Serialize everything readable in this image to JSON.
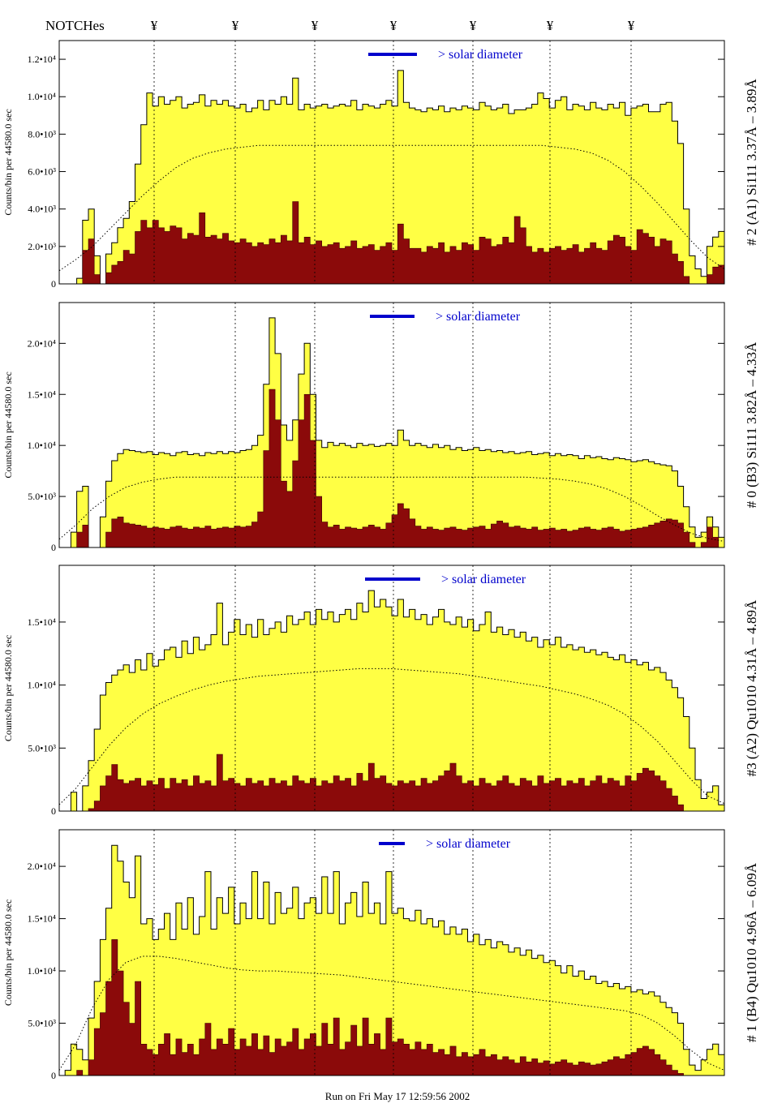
{
  "header": {
    "notches_label": "NOTCHes",
    "notch_symbol": "¥"
  },
  "footer": {
    "run_text": "Run on Fri May 17 12:59:56 2002"
  },
  "colors": {
    "fill": "#ffff44",
    "inner": "#8b0a0a",
    "line": "#000000",
    "accent": "#0000cc"
  },
  "chart_data": [
    {
      "type": "area",
      "ylabel": "Counts/bin per  44580.0 sec",
      "right_label": "# 2 (A1) Si111  3.37Å – 3.89Å",
      "solar_label": "> solar diameter",
      "ylim": [
        0,
        13000
      ],
      "ticks": [
        {
          "v": 0,
          "t": "0"
        },
        {
          "v": 2000,
          "t": "2.0•10³"
        },
        {
          "v": 4000,
          "t": "4.0•10³"
        },
        {
          "v": 6000,
          "t": "6.0•10³"
        },
        {
          "v": 8000,
          "t": "8.0•10³"
        },
        {
          "v": 10000,
          "t": "1.0•10⁴"
        },
        {
          "v": 12000,
          "t": "1.2•10⁴"
        }
      ],
      "total": [
        0,
        0,
        0,
        300,
        3400,
        4000,
        1500,
        0,
        1600,
        2200,
        3000,
        3500,
        4400,
        6400,
        8500,
        10200,
        9500,
        10000,
        9600,
        9800,
        10000,
        9400,
        9600,
        9700,
        10100,
        9500,
        9800,
        9600,
        9800,
        9500,
        9400,
        9600,
        9200,
        9400,
        9800,
        9300,
        9800,
        9600,
        10000,
        9600,
        11000,
        9300,
        9600,
        9400,
        9500,
        9600,
        9400,
        9500,
        9600,
        9500,
        9800,
        9300,
        9600,
        9500,
        9400,
        9600,
        9800,
        9500,
        11400,
        9700,
        9400,
        9300,
        9200,
        9400,
        9300,
        9500,
        9200,
        9400,
        9300,
        9500,
        9400,
        9300,
        9700,
        9500,
        9300,
        9400,
        9600,
        9100,
        9300,
        9300,
        9400,
        9600,
        10200,
        9900,
        9400,
        9800,
        10000,
        9300,
        9600,
        9500,
        9300,
        9700,
        9400,
        9300,
        9600,
        9400,
        9700,
        9000,
        9400,
        9500,
        9600,
        9200,
        9200,
        9600,
        9700,
        8700,
        7500,
        4000,
        1500,
        800,
        400,
        2000,
        2500,
        2800
      ],
      "inner": [
        0,
        0,
        0,
        0,
        1800,
        2400,
        500,
        0,
        600,
        1000,
        1200,
        1800,
        1600,
        2800,
        3400,
        3000,
        3400,
        3000,
        2800,
        3100,
        3000,
        2400,
        2700,
        2600,
        3800,
        2500,
        2600,
        2400,
        2700,
        2300,
        2200,
        2400,
        2200,
        2000,
        2200,
        2100,
        2400,
        2200,
        2600,
        2300,
        4400,
        2200,
        2500,
        2100,
        2300,
        2000,
        2100,
        2200,
        1900,
        2000,
        2300,
        1900,
        2000,
        2100,
        1800,
        2000,
        2200,
        1800,
        3200,
        2400,
        1900,
        1900,
        1700,
        2000,
        1900,
        2200,
        1700,
        2000,
        1800,
        2200,
        2100,
        1800,
        2500,
        2400,
        2000,
        2100,
        2500,
        2200,
        3600,
        3000,
        2000,
        1700,
        1900,
        1700,
        1900,
        2000,
        1800,
        1900,
        2100,
        1700,
        1900,
        2200,
        1900,
        1800,
        2300,
        2600,
        2500,
        2000,
        1800,
        2900,
        2700,
        2500,
        2000,
        2400,
        2300,
        1600,
        1200,
        400,
        0,
        0,
        0,
        500,
        900,
        1000
      ],
      "dotted": [
        700,
        1300,
        2000,
        2900,
        3800,
        4700,
        5500,
        6200,
        6700,
        7000,
        7200,
        7300,
        7400,
        7400,
        7400,
        7400,
        7400,
        7400,
        7400,
        7400,
        7400,
        7400,
        7400,
        7400,
        7400,
        7400,
        7400,
        7400,
        7400,
        7400,
        7300,
        7200,
        7000,
        6600,
        6000,
        5200,
        4300,
        3300,
        2300,
        1400,
        800
      ]
    },
    {
      "type": "area",
      "ylabel": "Counts/bin per  44580.0 sec",
      "right_label": "# 0 (B3) Si111  3.82Å – 4.33Å",
      "solar_label": "> solar diameter",
      "ylim": [
        0,
        24000
      ],
      "ticks": [
        {
          "v": 0,
          "t": "0"
        },
        {
          "v": 5000,
          "t": "5.0•10³"
        },
        {
          "v": 10000,
          "t": "1.0•10⁴"
        },
        {
          "v": 15000,
          "t": "1.5•10⁴"
        },
        {
          "v": 20000,
          "t": "2.0•10⁴"
        }
      ],
      "total": [
        0,
        0,
        1500,
        5500,
        6000,
        0,
        0,
        3000,
        6500,
        8500,
        9200,
        9600,
        9500,
        9400,
        9300,
        9400,
        9100,
        9300,
        9200,
        9000,
        9300,
        9400,
        9100,
        9200,
        9000,
        9300,
        9200,
        9400,
        9200,
        9400,
        9300,
        9500,
        9600,
        10000,
        11000,
        16000,
        22500,
        19000,
        12000,
        10500,
        12500,
        17000,
        20000,
        15000,
        10500,
        9800,
        10300,
        10000,
        10200,
        10000,
        9800,
        10200,
        10000,
        10100,
        9900,
        10000,
        10200,
        10000,
        11500,
        10500,
        10000,
        10200,
        10000,
        9800,
        10100,
        9800,
        10000,
        9600,
        9800,
        9500,
        9600,
        9800,
        9500,
        9600,
        9400,
        9500,
        9300,
        9400,
        9200,
        9300,
        9400,
        9100,
        9200,
        9300,
        9000,
        9200,
        9000,
        9100,
        9000,
        8700,
        9000,
        8800,
        8900,
        8700,
        8600,
        8800,
        8700,
        8600,
        8400,
        8500,
        8600,
        8400,
        8200,
        8100,
        8000,
        7500,
        6000,
        4000,
        2000,
        1000,
        1500,
        3000,
        2000,
        1000
      ],
      "inner": [
        0,
        0,
        0,
        1500,
        2200,
        0,
        0,
        0,
        1500,
        2800,
        3000,
        2400,
        2300,
        2200,
        2100,
        1900,
        2000,
        1900,
        1800,
        2000,
        2100,
        1900,
        1800,
        2000,
        1900,
        2100,
        1800,
        1900,
        2000,
        1900,
        2100,
        2000,
        2100,
        2500,
        3500,
        9500,
        15500,
        12500,
        6500,
        5500,
        8500,
        12500,
        15000,
        10500,
        5000,
        2500,
        2000,
        2200,
        1800,
        2000,
        1900,
        1800,
        2000,
        2200,
        2000,
        1800,
        2400,
        3200,
        4300,
        3800,
        2800,
        2100,
        1800,
        2000,
        1800,
        1700,
        1900,
        2000,
        1800,
        1700,
        1900,
        2000,
        2100,
        1800,
        2300,
        2600,
        2400,
        2000,
        2100,
        1900,
        1800,
        2000,
        1700,
        1800,
        1900,
        1700,
        1800,
        1600,
        1700,
        1900,
        2000,
        1800,
        1700,
        1900,
        2000,
        1800,
        1600,
        1700,
        1800,
        1900,
        2000,
        2200,
        2400,
        2600,
        2800,
        2700,
        2400,
        1500,
        500,
        0,
        500,
        2000,
        1000,
        0
      ],
      "dotted": [
        800,
        2200,
        3800,
        5000,
        5900,
        6400,
        6700,
        6900,
        6900,
        6900,
        6900,
        6900,
        6900,
        6900,
        6900,
        6900,
        6900,
        6900,
        6900,
        6900,
        6900,
        6900,
        6900,
        6900,
        6900,
        6900,
        6900,
        6900,
        6900,
        6800,
        6700,
        6500,
        6200,
        5700,
        5000,
        4100,
        3100,
        2200,
        1400,
        900,
        600
      ]
    },
    {
      "type": "area",
      "ylabel": "Counts/bin per  44580.0 sec",
      "right_label": "#3 (A2) Qu1010  4.31Å – 4.89Å",
      "solar_label": "> solar diameter",
      "ylim": [
        0,
        19500
      ],
      "ticks": [
        {
          "v": 0,
          "t": "0"
        },
        {
          "v": 5000,
          "t": "5.0•10³"
        },
        {
          "v": 10000,
          "t": "1.0•10⁴"
        },
        {
          "v": 15000,
          "t": "1.5•10⁴"
        }
      ],
      "total": [
        0,
        0,
        1500,
        0,
        2000,
        4000,
        6500,
        9200,
        10200,
        10800,
        11200,
        11600,
        11000,
        12000,
        11200,
        12500,
        11500,
        12000,
        12800,
        13000,
        12200,
        13500,
        12500,
        13800,
        12800,
        13200,
        14000,
        16500,
        13200,
        14200,
        15200,
        14000,
        14800,
        13800,
        15200,
        14000,
        14500,
        15000,
        14200,
        15500,
        14800,
        15200,
        15800,
        14800,
        16000,
        15200,
        15800,
        15000,
        15600,
        16000,
        15200,
        16500,
        15800,
        17500,
        16200,
        16800,
        16200,
        15500,
        16800,
        15400,
        16000,
        15200,
        15600,
        14800,
        15400,
        16000,
        15000,
        14800,
        15400,
        14600,
        15200,
        14300,
        14800,
        15800,
        14200,
        14600,
        14000,
        14400,
        13800,
        14200,
        13500,
        13800,
        13000,
        13600,
        13200,
        13800,
        13000,
        13200,
        12800,
        13000,
        12600,
        12800,
        12400,
        12600,
        12200,
        12000,
        12400,
        11800,
        12000,
        11600,
        11800,
        11200,
        11400,
        11000,
        10400,
        9800,
        9000,
        7500,
        5000,
        2500,
        1000,
        1500,
        2000,
        500
      ],
      "inner": [
        0,
        0,
        0,
        0,
        0,
        200,
        800,
        2000,
        2800,
        3700,
        2500,
        2200,
        2400,
        2600,
        2000,
        2400,
        2100,
        2600,
        1800,
        2600,
        2200,
        2500,
        2000,
        2800,
        2200,
        2400,
        2000,
        4500,
        2400,
        2600,
        2200,
        2000,
        2600,
        2200,
        2400,
        2000,
        2600,
        2200,
        2400,
        2000,
        2800,
        2400,
        2200,
        2600,
        2000,
        2400,
        2200,
        2800,
        2400,
        2600,
        2000,
        3000,
        2400,
        3800,
        2600,
        2800,
        2200,
        2000,
        2400,
        2200,
        2400,
        2000,
        2600,
        2200,
        2400,
        2800,
        3200,
        3800,
        2800,
        2200,
        2400,
        2000,
        2600,
        2200,
        2000,
        2400,
        2800,
        2200,
        2000,
        2600,
        2400,
        2000,
        2800,
        2200,
        2400,
        2600,
        2000,
        2400,
        2200,
        2600,
        2000,
        2400,
        2800,
        2200,
        2600,
        2400,
        2000,
        2800,
        2400,
        3000,
        3400,
        3200,
        2800,
        2400,
        1800,
        1200,
        500,
        0,
        0,
        0,
        0,
        0,
        0,
        0
      ],
      "dotted": [
        500,
        1800,
        3500,
        5200,
        6600,
        7700,
        8500,
        9100,
        9600,
        10000,
        10300,
        10500,
        10700,
        10800,
        10900,
        11000,
        11100,
        11200,
        11300,
        11300,
        11300,
        11200,
        11100,
        11000,
        10900,
        10700,
        10500,
        10300,
        10100,
        9900,
        9600,
        9300,
        8900,
        8400,
        7700,
        6700,
        5500,
        4000,
        2500,
        1200,
        600
      ]
    },
    {
      "type": "area",
      "ylabel": "Counts/bin per  44580.0 sec",
      "right_label": "# 1 (B4) Qu1010 4.96Å – 6.09Å",
      "solar_label": "> solar diameter",
      "ylim": [
        0,
        23500
      ],
      "ticks": [
        {
          "v": 0,
          "t": "0"
        },
        {
          "v": 5000,
          "t": "5.0•10³"
        },
        {
          "v": 10000,
          "t": "1.0•10⁴"
        },
        {
          "v": 15000,
          "t": "1.5•10⁴"
        },
        {
          "v": 20000,
          "t": "2.0•10⁴"
        }
      ],
      "total": [
        0,
        500,
        3000,
        2500,
        1500,
        5500,
        9000,
        13000,
        16000,
        22000,
        20500,
        18500,
        17000,
        21000,
        14500,
        15000,
        13000,
        14000,
        15500,
        13000,
        16500,
        14000,
        17000,
        13500,
        15200,
        19500,
        14000,
        17000,
        15500,
        18000,
        14500,
        16500,
        15000,
        19500,
        15000,
        18500,
        14500,
        17500,
        15500,
        16000,
        18000,
        15000,
        16500,
        17000,
        15500,
        19000,
        15500,
        19500,
        14500,
        16500,
        17500,
        15200,
        18500,
        15500,
        16500,
        14500,
        19500,
        15500,
        16000,
        15000,
        14800,
        15800,
        14500,
        15000,
        14200,
        14800,
        13500,
        14200,
        13500,
        14000,
        12800,
        13500,
        12500,
        13000,
        12200,
        12800,
        12500,
        11800,
        12200,
        11500,
        12000,
        11200,
        11500,
        10800,
        11000,
        10500,
        9800,
        10500,
        9500,
        10000,
        9200,
        9500,
        8800,
        9000,
        8500,
        8800,
        8300,
        8500,
        8000,
        8200,
        7800,
        8000,
        7600,
        7000,
        6500,
        6000,
        5000,
        2500,
        1000,
        500,
        1500,
        2500,
        3000,
        2000
      ],
      "inner": [
        0,
        0,
        0,
        500,
        0,
        1500,
        4500,
        6000,
        9000,
        13000,
        10000,
        7000,
        5000,
        9000,
        3000,
        2500,
        2000,
        3000,
        4000,
        2000,
        3500,
        2200,
        3000,
        2000,
        3500,
        5000,
        2500,
        3500,
        3000,
        4500,
        2500,
        3500,
        2800,
        4000,
        2500,
        3800,
        2200,
        3500,
        2800,
        3200,
        4500,
        2500,
        3500,
        4000,
        2800,
        5000,
        3000,
        5500,
        2500,
        3200,
        4800,
        2800,
        5500,
        3000,
        4000,
        2500,
        5500,
        3200,
        3500,
        3000,
        2500,
        3200,
        2500,
        3000,
        2200,
        2500,
        2000,
        2800,
        1800,
        2200,
        1800,
        2000,
        2500,
        1800,
        2000,
        1500,
        1800,
        1500,
        1200,
        1800,
        1300,
        1600,
        1200,
        1400,
        1100,
        1300,
        1500,
        1200,
        1000,
        1300,
        1200,
        1000,
        1100,
        1300,
        1500,
        1800,
        1600,
        2000,
        2200,
        2600,
        2800,
        2500,
        2000,
        1500,
        1000,
        500,
        200,
        0,
        0,
        0,
        0,
        0,
        0,
        0
      ],
      "dotted": [
        500,
        3000,
        6500,
        9200,
        10800,
        11400,
        11400,
        11200,
        10900,
        10600,
        10300,
        10100,
        10000,
        10000,
        9900,
        9800,
        9700,
        9600,
        9400,
        9200,
        9000,
        8800,
        8600,
        8400,
        8200,
        8000,
        7800,
        7600,
        7400,
        7200,
        7000,
        6800,
        6600,
        6400,
        6200,
        5800,
        5000,
        3800,
        2400,
        1200,
        500
      ]
    }
  ]
}
